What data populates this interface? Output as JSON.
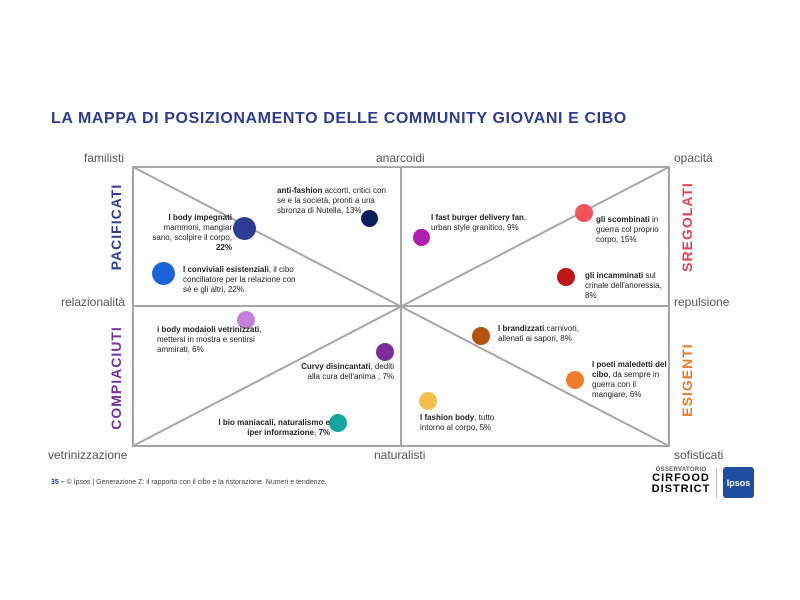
{
  "title": "LA MAPPA DI POSIZIONAMENTO DELLE COMMUNITY GIOVANI E CIBO",
  "axes": {
    "top_left": "familisti",
    "top_center": "anarcoidi",
    "top_right": "opacità",
    "middle_left": "relazionalità",
    "middle_right": "repulsione",
    "bottom_left": "vetrinizzazione",
    "bottom_center": "naturalisti",
    "bottom_right": "sofisticati"
  },
  "quadrants": {
    "top_left": {
      "label": "PACIFICATI",
      "color": "#2e3c95"
    },
    "top_right": {
      "label": "SREGOLATI",
      "color": "#e8414f"
    },
    "bottom_left": {
      "label": "COMPIACIUTI",
      "color": "#7b2ea0"
    },
    "bottom_right": {
      "label": "ESIGENTI",
      "color": "#ec7a2a"
    }
  },
  "communities": [
    {
      "name": "I body impegnati",
      "desc": "mammoni, mangiar sano, scolpire il corpo,",
      "pct": "22%",
      "color": "#2e3c95"
    },
    {
      "name": "I conviviali esistenziali",
      "desc": ", il cibo conciliatore per la relazione con sé e gli altri,",
      "pct": "22%",
      "color": "#1a63d8"
    },
    {
      "name": "anti-fashion",
      "desc": "accorti, critici con se e la società, pronti a una sbronza di Nutella,",
      "pct": "13%",
      "color": "#0d1f5c"
    },
    {
      "name": "I fast burger delivery fan",
      "desc": ", urban style granitico,",
      "pct": "9%",
      "color": "#b01bb0"
    },
    {
      "name": "gli scombinati",
      "desc": "in guerra col proprio corpo,",
      "pct": "15%",
      "color": "#f2535a"
    },
    {
      "name": "gli incamminati",
      "desc": "sul crinale dell'anoressia,",
      "pct": "8%",
      "color": "#c01515"
    },
    {
      "name": "i body modaioli vetrinizzati",
      "desc": ", mettersi in mostra e sentirsi ammirati,",
      "pct": "6%",
      "color": "#c581d9"
    },
    {
      "name": "Curvy disincantati",
      "desc": ", dediti alla cura dell'anima ,",
      "pct": "7%",
      "color": "#7e2d9a"
    },
    {
      "name": "I bio maniacali, naturalismo e iper informazione",
      "desc": ",",
      "pct": "7%",
      "color": "#17a5a0"
    },
    {
      "name": "I brandizzati",
      "desc": "carnivori, allenati ai sapori,",
      "pct": "8%",
      "color": "#b5520e"
    },
    {
      "name": "I poeti maledetti del cibo",
      "desc": ", da sempre in guerra con il mangiare,",
      "pct": "6%",
      "color": "#f07b2a"
    },
    {
      "name": "I fashion body",
      "desc": ", tutto intorno al corpo,",
      "pct": "5%",
      "color": "#f4c04a"
    }
  ],
  "footer": {
    "page": "35 –",
    "text": "© Ipsos | Generazione Z: il rapporto con il cibo e la ristorazione. Numeri e tendenze."
  },
  "logos": {
    "osservatorio_top": "OSSERVATORIO",
    "osservatorio_line2": "CIRFOOD",
    "osservatorio_line3": "DISTRICT",
    "ipsos": "Ipsos"
  }
}
